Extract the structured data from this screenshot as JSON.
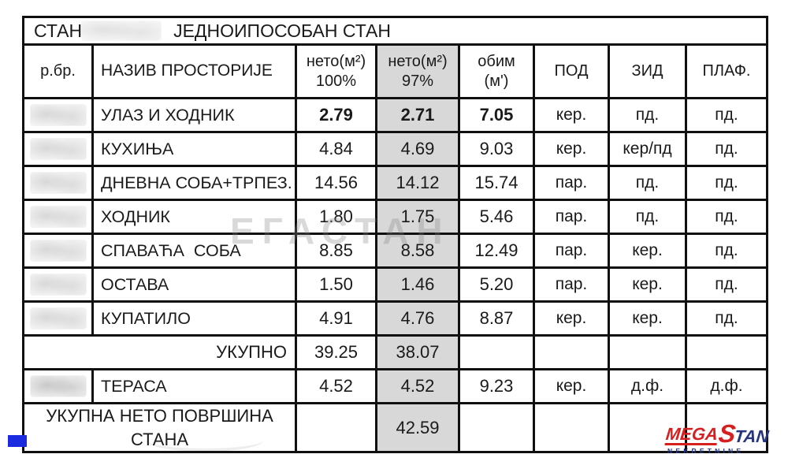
{
  "title": {
    "left": "СТАН",
    "right": "ЈЕДНОИПОСОБАН СТАН"
  },
  "header": {
    "rbr": "р.бр.",
    "naziv": "НАЗИВ ПРОСТОРИЈЕ",
    "neto100_l1": "нето(м²)",
    "neto100_l2": "100%",
    "neto97_l1": "нето(м²)",
    "neto97_l2": "97%",
    "obim_l1": "обим",
    "obim_l2": "(м')",
    "pod": "ПОД",
    "zid": "ЗИД",
    "plaf": "ПЛАФ."
  },
  "rows": [
    {
      "name": "УЛАЗ И ХОДНИК",
      "neto100": "2.79",
      "neto97": "2.71",
      "obim": "7.05",
      "pod": "кер.",
      "zid": "пд.",
      "plaf": "пд."
    },
    {
      "name": "КУХИЊА",
      "neto100": "4.84",
      "neto97": "4.69",
      "obim": "9.03",
      "pod": "кер.",
      "zid": "кер/пд",
      "plaf": "пд."
    },
    {
      "name": "ДНЕВНА СОБА+ТРПЕЗ.",
      "neto100": "14.56",
      "neto97": "14.12",
      "obim": "15.74",
      "pod": "пар.",
      "zid": "пд.",
      "plaf": "пд."
    },
    {
      "name": "ХОДНИК",
      "neto100": "1.80",
      "neto97": "1.75",
      "obim": "5.46",
      "pod": "пар.",
      "zid": "пд.",
      "plaf": "пд."
    },
    {
      "name": "СПАВАЋА  СОБА",
      "neto100": "8.85",
      "neto97": "8.58",
      "obim": "12.49",
      "pod": "пар.",
      "zid": "кер.",
      "plaf": "пд."
    },
    {
      "name": "ОСТАВА",
      "neto100": "1.50",
      "neto97": "1.46",
      "obim": "5.20",
      "pod": "пар.",
      "zid": "кер.",
      "plaf": "пд."
    },
    {
      "name": "КУПАТИЛО",
      "neto100": "4.91",
      "neto97": "4.76",
      "obim": "8.87",
      "pod": "кер.",
      "zid": "кер.",
      "plaf": "пд."
    }
  ],
  "totals": {
    "label": "УКУПНО",
    "neto100": "39.25",
    "neto97": "38.07"
  },
  "terasa": {
    "name": "ТЕРАСА",
    "neto100": "4.52",
    "neto97": "4.52",
    "obim": "9.23",
    "pod": "кер.",
    "zid": "д.ф.",
    "plaf": "д.ф."
  },
  "grand": {
    "label": "УКУПНА НЕТО ПОВРШИНА СТАНА",
    "neto97": "42.59"
  },
  "watermark": "ЕГАСТАН",
  "logo": {
    "mega": "MEGA",
    "s": "S",
    "tan": "TAN",
    "sub": "NEKRETNINE",
    "red": "#d6201f",
    "navy": "#27357e"
  },
  "colors": {
    "grid_lines": "#101010",
    "gray_column": "#d8d8d8",
    "text": "#1a1a1a",
    "blue_mark": "#1b2ce0"
  }
}
